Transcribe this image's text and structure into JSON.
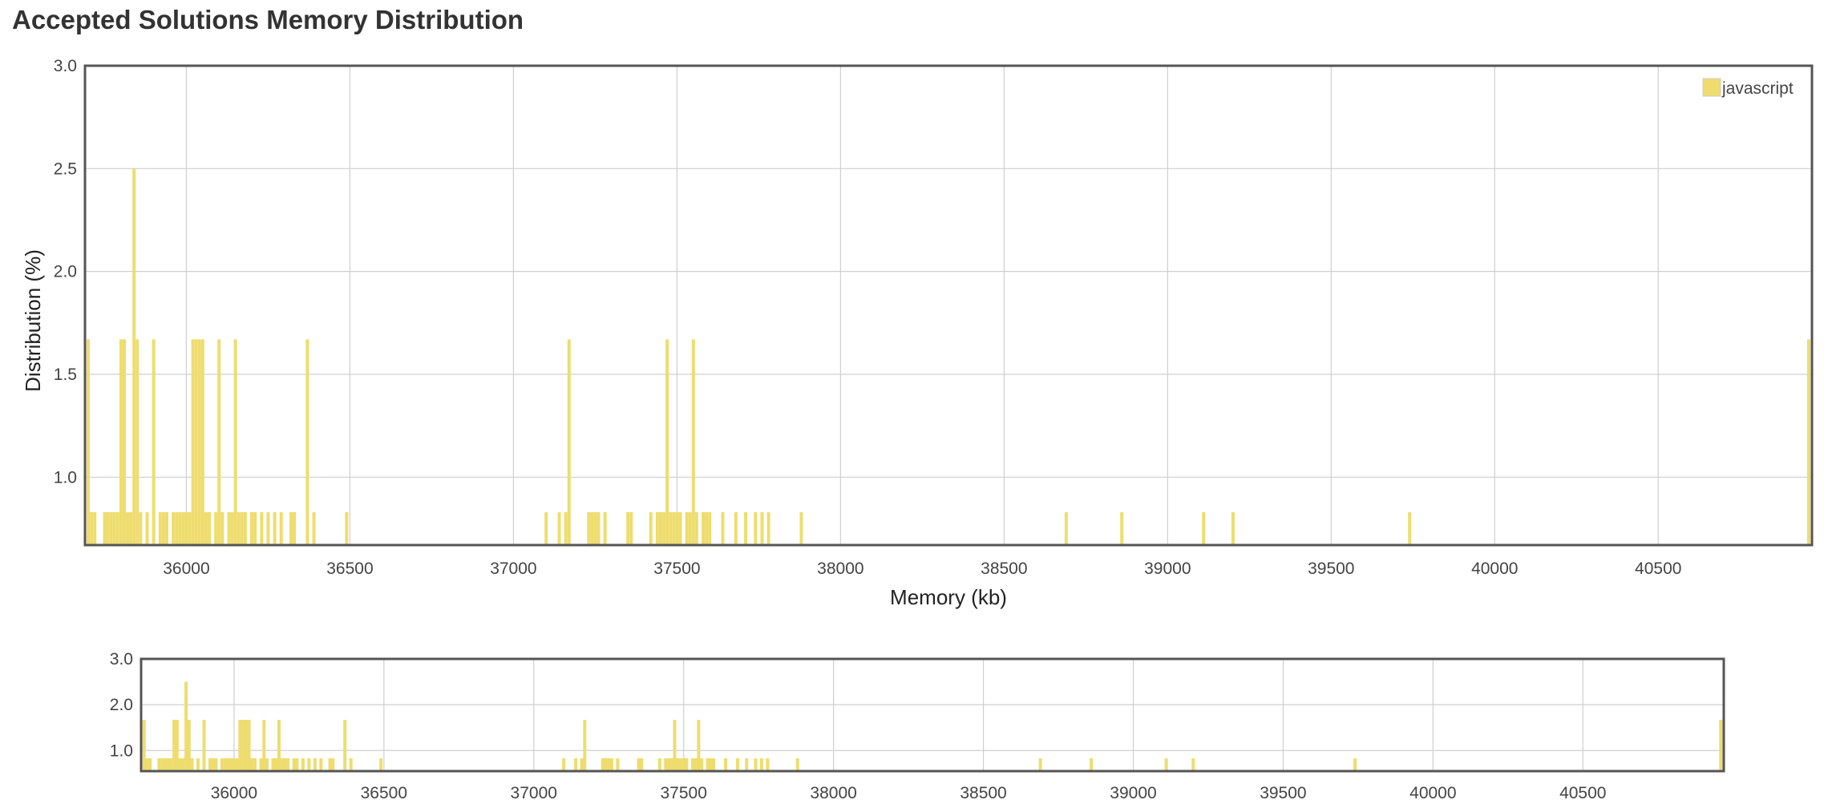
{
  "title": "Accepted Solutions Memory Distribution",
  "chart_data": {
    "type": "bar",
    "title": "Accepted Solutions Memory Distribution",
    "xlabel": "Memory (kb)",
    "ylabel": "Distribution (%)",
    "xlim": [
      35690,
      40970
    ],
    "ylim": [
      0.67,
      3.0
    ],
    "xticks": [
      36000,
      36500,
      37000,
      37500,
      38000,
      38500,
      39000,
      39500,
      40000,
      40500
    ],
    "yticks": [
      1.0,
      1.5,
      2.0,
      2.5,
      3.0
    ],
    "grid": true,
    "legend": {
      "position": "top-right",
      "entries": [
        "javascript"
      ]
    },
    "bar_color": "#eedd6e",
    "series": [
      {
        "name": "javascript",
        "x": [
          35700,
          35710,
          35720,
          35750,
          35760,
          35770,
          35780,
          35790,
          35800,
          35810,
          35820,
          35830,
          35840,
          35850,
          35860,
          35880,
          35900,
          35920,
          35930,
          35940,
          35960,
          35970,
          35980,
          35990,
          36000,
          36010,
          36020,
          36030,
          36040,
          36050,
          36060,
          36070,
          36090,
          36100,
          36110,
          36130,
          36140,
          36150,
          36160,
          36170,
          36180,
          36200,
          36210,
          36230,
          36250,
          36270,
          36290,
          36320,
          36330,
          36370,
          36390,
          36490,
          37100,
          37140,
          37160,
          37170,
          37230,
          37240,
          37250,
          37260,
          37280,
          37350,
          37360,
          37420,
          37440,
          37450,
          37460,
          37470,
          37480,
          37490,
          37500,
          37510,
          37530,
          37540,
          37550,
          37560,
          37580,
          37590,
          37600,
          37640,
          37680,
          37710,
          37740,
          37760,
          37780,
          37880,
          38690,
          38860,
          39110,
          39200,
          39740,
          40960
        ],
        "values": [
          1.67,
          0.83,
          0.83,
          0.83,
          0.83,
          0.83,
          0.83,
          0.83,
          1.67,
          1.67,
          0.83,
          0.83,
          2.5,
          1.67,
          0.83,
          0.83,
          1.67,
          0.83,
          0.83,
          0.83,
          0.83,
          0.83,
          0.83,
          0.83,
          0.83,
          0.83,
          1.67,
          1.67,
          1.67,
          1.67,
          0.83,
          0.83,
          0.83,
          1.67,
          0.83,
          0.83,
          0.83,
          1.67,
          0.83,
          0.83,
          0.83,
          0.83,
          0.83,
          0.83,
          0.83,
          0.83,
          0.83,
          0.83,
          0.83,
          1.67,
          0.83,
          0.83,
          0.83,
          0.83,
          0.83,
          1.67,
          0.83,
          0.83,
          0.83,
          0.83,
          0.83,
          0.83,
          0.83,
          0.83,
          0.83,
          0.83,
          0.83,
          1.67,
          0.83,
          0.83,
          0.83,
          0.83,
          0.83,
          0.83,
          1.67,
          0.83,
          0.83,
          0.83,
          0.83,
          0.83,
          0.83,
          0.83,
          0.83,
          0.83,
          0.83,
          0.83,
          0.83,
          0.83,
          0.83,
          0.83,
          0.83,
          1.67
        ]
      }
    ],
    "navigator": {
      "xlim": [
        35690,
        40970
      ],
      "ylim": [
        0.55,
        3.0
      ],
      "yticks": [
        1.0,
        2.0,
        3.0
      ],
      "xticks": [
        36000,
        36500,
        37000,
        37500,
        38000,
        38500,
        39000,
        39500,
        40000,
        40500
      ]
    }
  }
}
